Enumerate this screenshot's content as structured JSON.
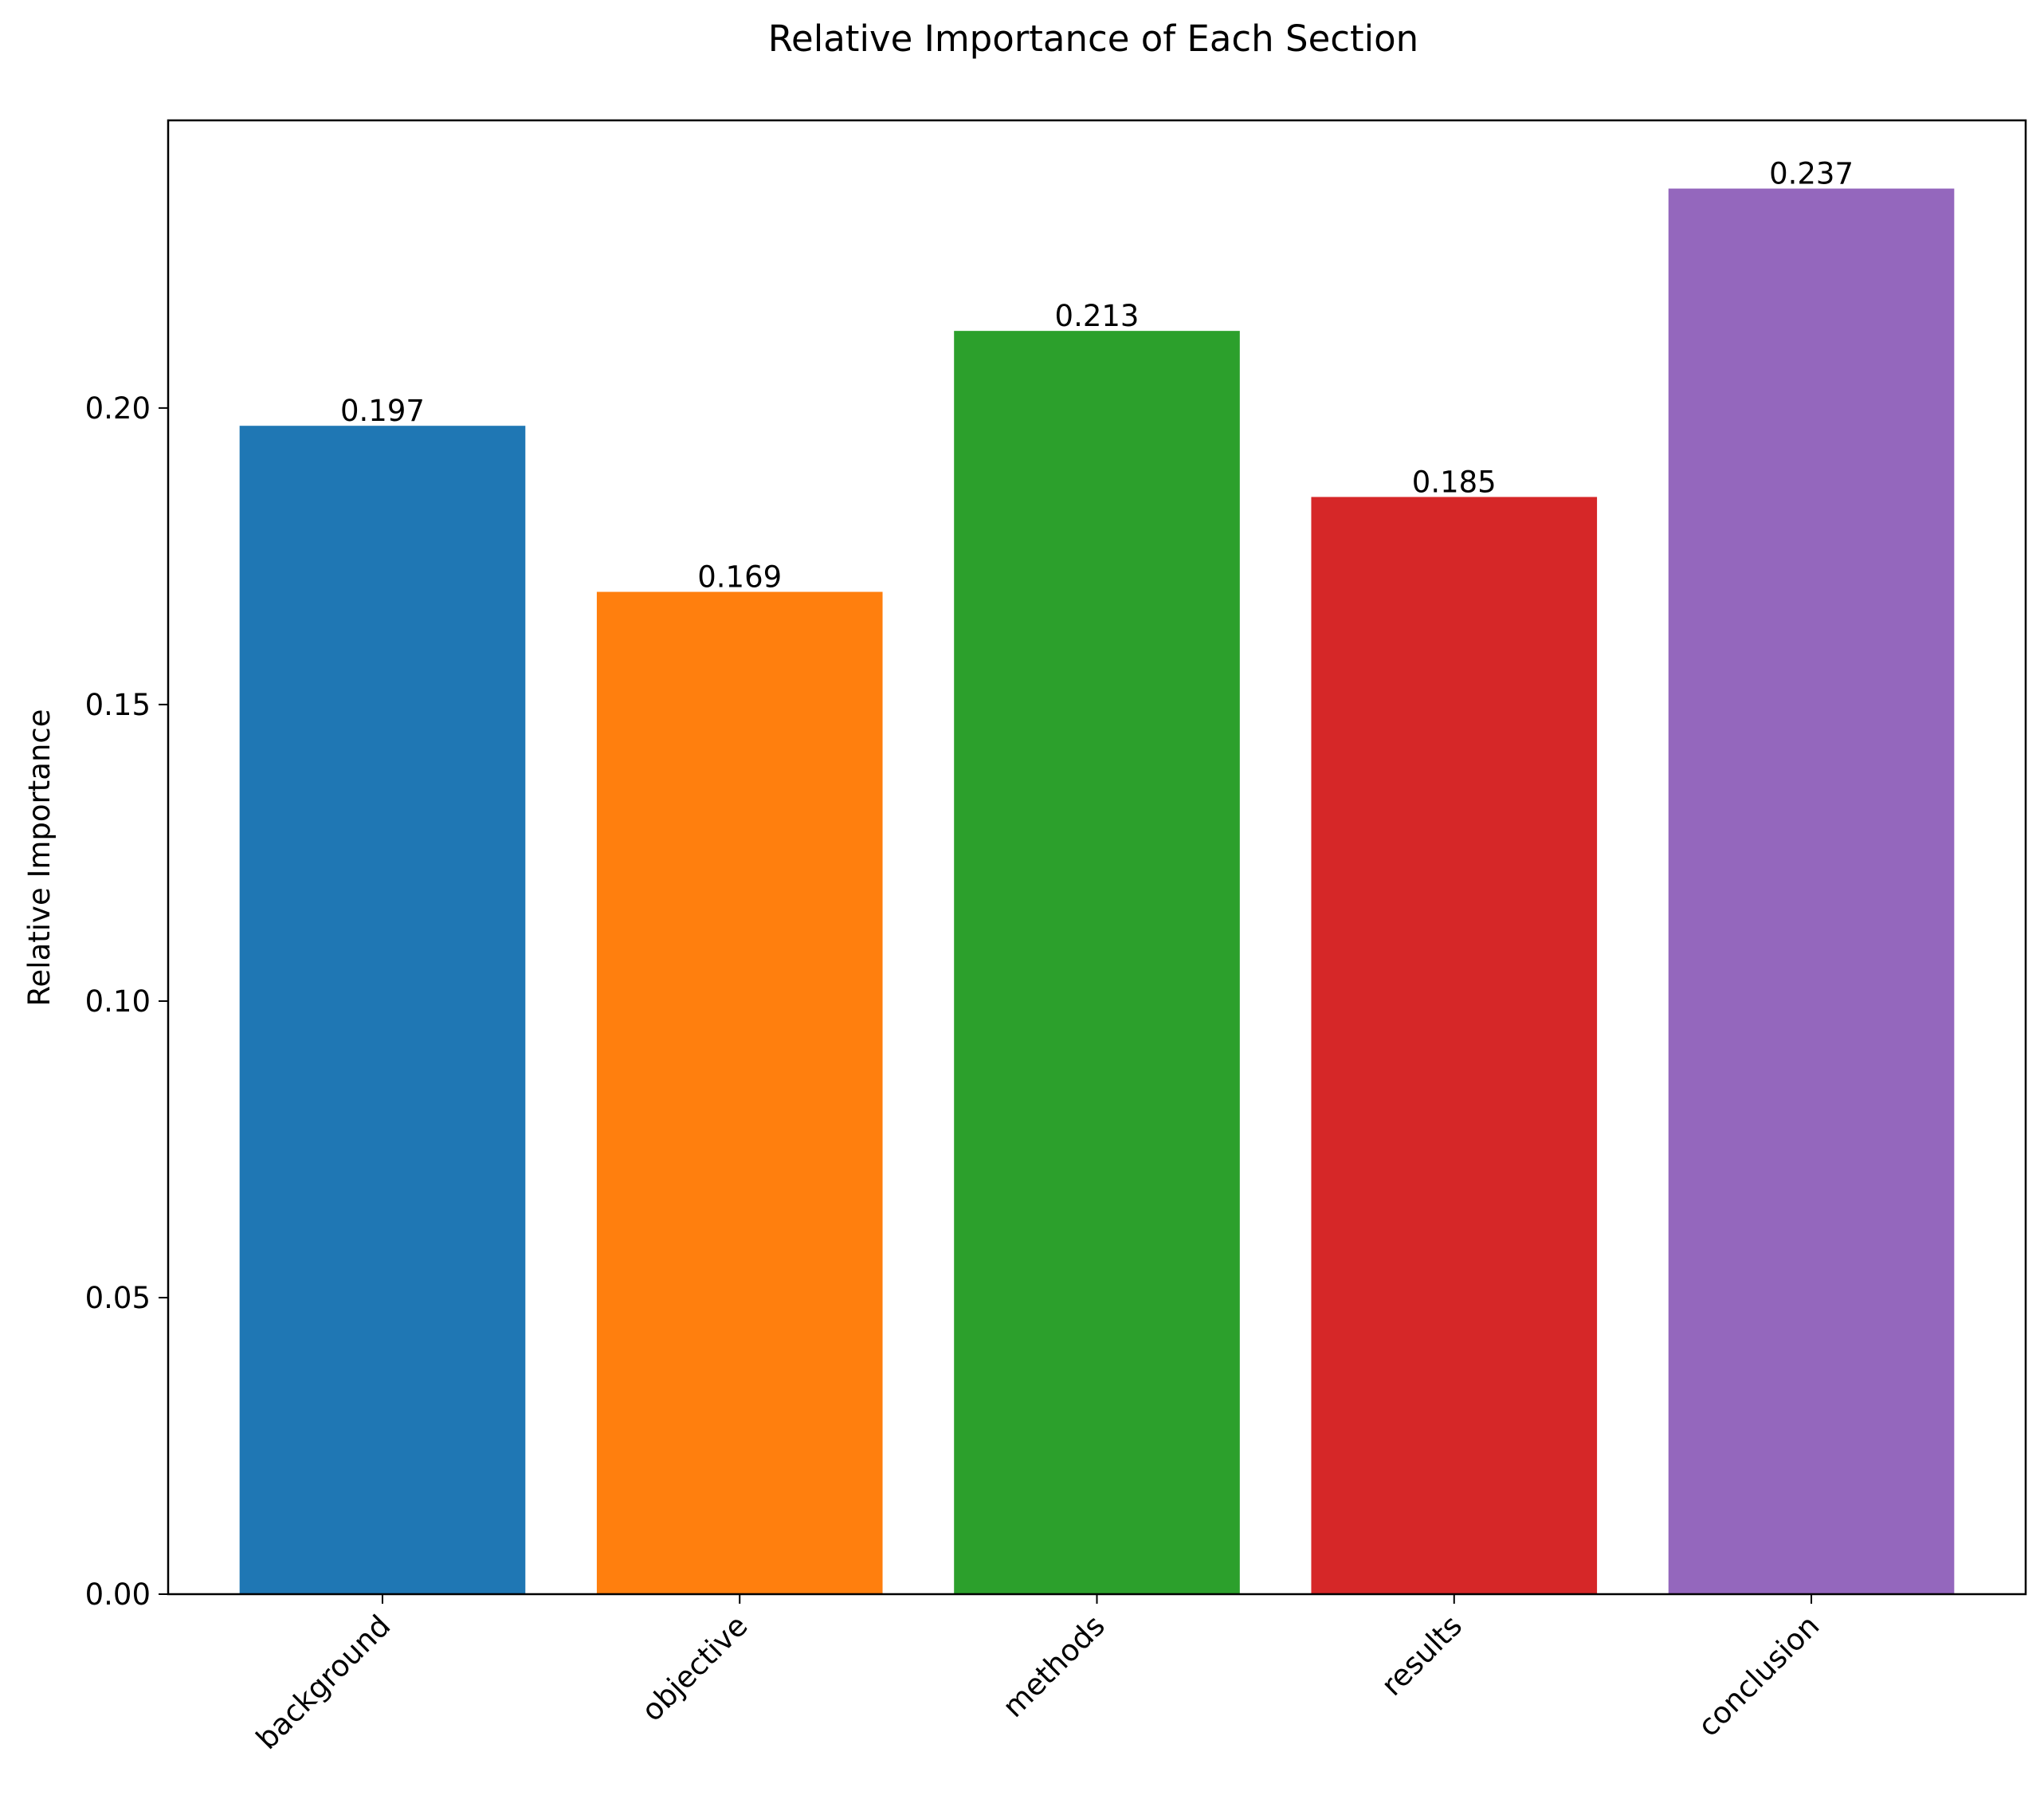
{
  "chart_data": {
    "type": "bar",
    "title": "Relative Importance of Each Section",
    "xlabel": "",
    "ylabel": "Relative Importance",
    "categories": [
      "background",
      "objective",
      "methods",
      "results",
      "conclusion"
    ],
    "values": [
      0.197,
      0.169,
      0.213,
      0.185,
      0.237
    ],
    "data_labels": [
      "0.197",
      "0.169",
      "0.213",
      "0.185",
      "0.237"
    ],
    "colors": [
      "#1f77b4",
      "#ff7f0e",
      "#2ca02c",
      "#d62728",
      "#9467bd"
    ],
    "ylim": [
      0,
      0.2485
    ],
    "yticks": [
      0.0,
      0.05,
      0.1,
      0.15,
      0.2
    ],
    "ytick_labels": [
      "0.00",
      "0.05",
      "0.10",
      "0.15",
      "0.20"
    ],
    "xtick_rotation": 45,
    "grid": false,
    "legend": "none"
  }
}
